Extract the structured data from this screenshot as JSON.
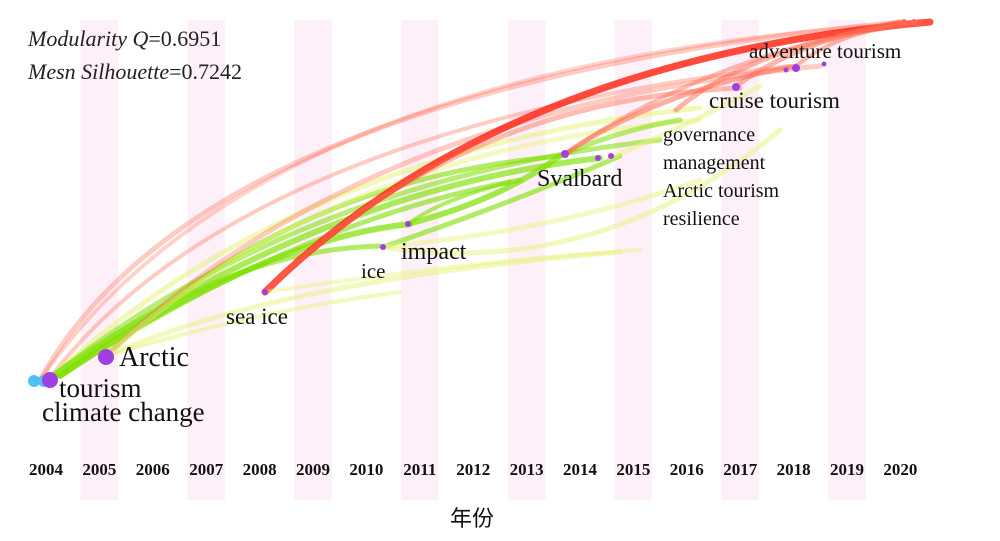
{
  "stats": {
    "modularity_label": "Modularity Q",
    "modularity_value": "=0.6951",
    "silhouette_label": "Mesn Silhouette",
    "silhouette_value": "=0.7242"
  },
  "x_axis_label": "年份",
  "years": [
    "2004",
    "2005",
    "2006",
    "2007",
    "2008",
    "2009",
    "2010",
    "2011",
    "2012",
    "2013",
    "2014",
    "2015",
    "2016",
    "2017",
    "2018",
    "2019",
    "2020"
  ],
  "keywords": [
    {
      "text": "adventure tourism",
      "year": 2018
    },
    {
      "text": "cruise tourism",
      "year": 2017
    },
    {
      "text": "governance",
      "year": 2016
    },
    {
      "text": "management",
      "year": 2016
    },
    {
      "text": "Arctic tourism",
      "year": 2016
    },
    {
      "text": "resilience",
      "year": 2016
    },
    {
      "text": "Svalbard",
      "year": 2014
    },
    {
      "text": "impact",
      "year": 2011
    },
    {
      "text": "ice",
      "year": 2011
    },
    {
      "text": "sea ice",
      "year": 2008
    },
    {
      "text": "Arctic",
      "year": 2005
    },
    {
      "text": "tourism",
      "year": 2004
    },
    {
      "text": "climate change",
      "year": 2004
    }
  ],
  "colors": {
    "stripe": "#fdf0f8",
    "early_link": "#7ee000",
    "mid_link": "#e8f27a",
    "late_link": "#ff6a50",
    "hot_link": "#ff2a1a",
    "node_purple": "#a040e0",
    "node_cyan": "#50c0f0"
  }
}
